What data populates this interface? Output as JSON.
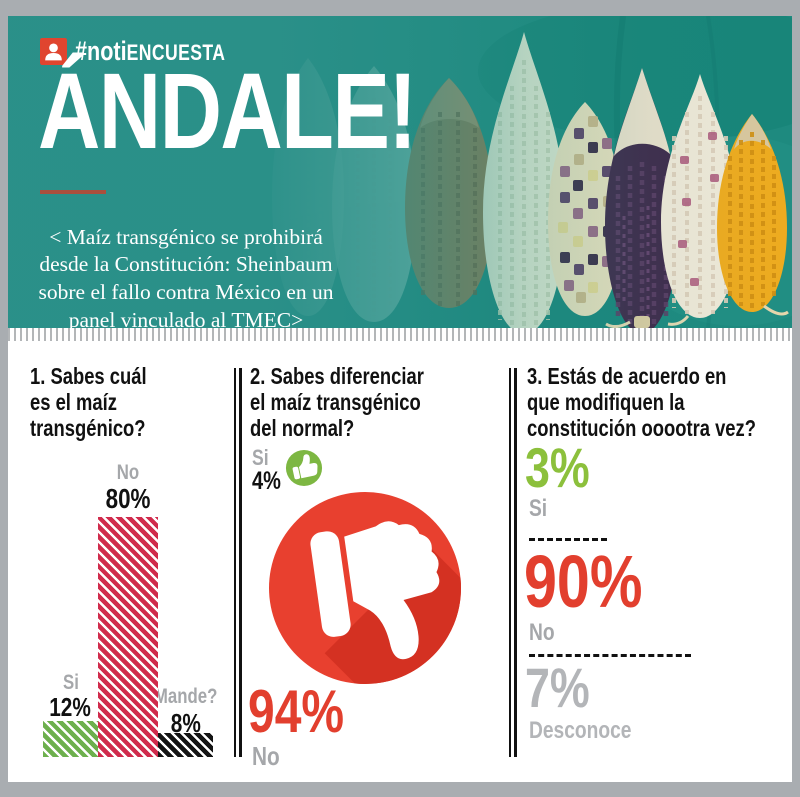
{
  "colors": {
    "teal_header": "#2a8f88",
    "accent_red": "#e23f2e",
    "bar_red": "#d02b4c",
    "bar_green": "#6db04d",
    "bar_black": "#141414",
    "text_green": "#8cc03c",
    "gray_label": "#a5a7aa",
    "light_gray": "#b3b5b8",
    "rule_rust": "#a94f3d",
    "frame_gray": "#a9adb1"
  },
  "header": {
    "brand_icon": "person-icon",
    "brand_hash": "#noti",
    "brand_rest": "ENCUESTA",
    "title": "ÁNDALE!",
    "quote": "< Maíz transgénico se prohibirá desde la Constitución: Sheinbaum sobre el fallo contra México en un panel vinculado al TMEC>"
  },
  "questions": {
    "q1": {
      "lines": [
        "1. Sabes cuál",
        "es el maíz",
        "transgénico?"
      ]
    },
    "q2": {
      "lines": [
        "2. Sabes diferenciar",
        "el maíz transgénico",
        "del normal?"
      ]
    },
    "q3": {
      "lines": [
        "3. Estás de acuerdo en",
        "que modifiquen la",
        "constitución ooootra vez?"
      ]
    }
  },
  "chart_data": [
    {
      "type": "bar",
      "title": "1. Sabes cuál es el maíz transgénico?",
      "categories": [
        "Si",
        "No",
        "Mande?"
      ],
      "values": [
        12,
        80,
        8
      ],
      "value_labels": [
        "12%",
        "80%",
        "8%"
      ],
      "colors": [
        "#6db04d",
        "#d02b4c",
        "#141414"
      ],
      "unit": "%",
      "ylim": [
        0,
        100
      ],
      "grid": false,
      "legend": "none"
    },
    {
      "type": "pie",
      "title": "2. Sabes diferenciar el maíz transgénico del normal?",
      "categories": [
        "Si",
        "No"
      ],
      "values": [
        4,
        94
      ],
      "value_labels": [
        "4%",
        "94%"
      ],
      "colors": [
        "#7db742",
        "#e23f2e"
      ],
      "icons": [
        "thumbs-up-icon",
        "thumbs-down-icon"
      ],
      "legend": "none"
    },
    {
      "type": "bar",
      "title": "3. Estás de acuerdo en que modifiquen la constitución ooootra vez?",
      "categories": [
        "Si",
        "No",
        "Desconoce"
      ],
      "values": [
        3,
        90,
        7
      ],
      "value_labels": [
        "3%",
        "90%",
        "7%"
      ],
      "colors": [
        "#8cc03c",
        "#e23f2e",
        "#b3b5b8"
      ],
      "unit": "%",
      "legend": "none"
    }
  ]
}
